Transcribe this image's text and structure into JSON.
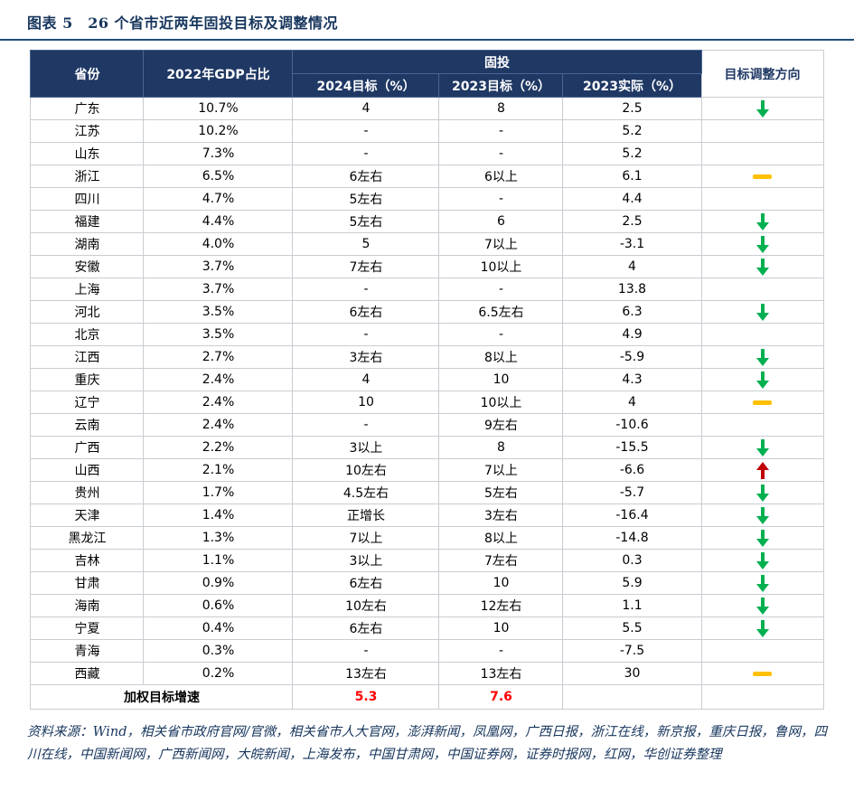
{
  "page_title": "图表 5　26 个省市近两年固投目标及调整情况",
  "chart_data": {
    "type": "table",
    "title": "26 个省市近两年固投目标及调整情况",
    "group_header": "固投",
    "columns": [
      "省份",
      "2022年GDP占比",
      "2024目标（%）",
      "2023目标（%）",
      "2023实际（%）",
      "目标调整方向"
    ],
    "rows": [
      {
        "province": "广东",
        "gdp_share": "10.7%",
        "target_2024": "4",
        "target_2023": "8",
        "actual_2023": "2.5",
        "direction": "down"
      },
      {
        "province": "江苏",
        "gdp_share": "10.2%",
        "target_2024": "-",
        "target_2023": "-",
        "actual_2023": "5.2",
        "direction": ""
      },
      {
        "province": "山东",
        "gdp_share": "7.3%",
        "target_2024": "-",
        "target_2023": "-",
        "actual_2023": "5.2",
        "direction": ""
      },
      {
        "province": "浙江",
        "gdp_share": "6.5%",
        "target_2024": "6左右",
        "target_2023": "6以上",
        "actual_2023": "6.1",
        "direction": "flat"
      },
      {
        "province": "四川",
        "gdp_share": "4.7%",
        "target_2024": "5左右",
        "target_2023": "-",
        "actual_2023": "4.4",
        "direction": ""
      },
      {
        "province": "福建",
        "gdp_share": "4.4%",
        "target_2024": "5左右",
        "target_2023": "6",
        "actual_2023": "2.5",
        "direction": "down"
      },
      {
        "province": "湖南",
        "gdp_share": "4.0%",
        "target_2024": "5",
        "target_2023": "7以上",
        "actual_2023": "-3.1",
        "direction": "down"
      },
      {
        "province": "安徽",
        "gdp_share": "3.7%",
        "target_2024": "7左右",
        "target_2023": "10以上",
        "actual_2023": "4",
        "direction": "down"
      },
      {
        "province": "上海",
        "gdp_share": "3.7%",
        "target_2024": "-",
        "target_2023": "-",
        "actual_2023": "13.8",
        "direction": ""
      },
      {
        "province": "河北",
        "gdp_share": "3.5%",
        "target_2024": "6左右",
        "target_2023": "6.5左右",
        "actual_2023": "6.3",
        "direction": "down"
      },
      {
        "province": "北京",
        "gdp_share": "3.5%",
        "target_2024": "-",
        "target_2023": "-",
        "actual_2023": "4.9",
        "direction": ""
      },
      {
        "province": "江西",
        "gdp_share": "2.7%",
        "target_2024": "3左右",
        "target_2023": "8以上",
        "actual_2023": "-5.9",
        "direction": "down"
      },
      {
        "province": "重庆",
        "gdp_share": "2.4%",
        "target_2024": "4",
        "target_2023": "10",
        "actual_2023": "4.3",
        "direction": "down"
      },
      {
        "province": "辽宁",
        "gdp_share": "2.4%",
        "target_2024": "10",
        "target_2023": "10以上",
        "actual_2023": "4",
        "direction": "flat"
      },
      {
        "province": "云南",
        "gdp_share": "2.4%",
        "target_2024": "-",
        "target_2023": "9左右",
        "actual_2023": "-10.6",
        "direction": ""
      },
      {
        "province": "广西",
        "gdp_share": "2.2%",
        "target_2024": "3以上",
        "target_2023": "8",
        "actual_2023": "-15.5",
        "direction": "down"
      },
      {
        "province": "山西",
        "gdp_share": "2.1%",
        "target_2024": "10左右",
        "target_2023": "7以上",
        "actual_2023": "-6.6",
        "direction": "up"
      },
      {
        "province": "贵州",
        "gdp_share": "1.7%",
        "target_2024": "4.5左右",
        "target_2023": "5左右",
        "actual_2023": "-5.7",
        "direction": "down"
      },
      {
        "province": "天津",
        "gdp_share": "1.4%",
        "target_2024": "正增长",
        "target_2023": "3左右",
        "actual_2023": "-16.4",
        "direction": "down"
      },
      {
        "province": "黑龙江",
        "gdp_share": "1.3%",
        "target_2024": "7以上",
        "target_2023": "8以上",
        "actual_2023": "-14.8",
        "direction": "down"
      },
      {
        "province": "吉林",
        "gdp_share": "1.1%",
        "target_2024": "3以上",
        "target_2023": "7左右",
        "actual_2023": "0.3",
        "direction": "down"
      },
      {
        "province": "甘肃",
        "gdp_share": "0.9%",
        "target_2024": "6左右",
        "target_2023": "10",
        "actual_2023": "5.9",
        "direction": "down"
      },
      {
        "province": "海南",
        "gdp_share": "0.6%",
        "target_2024": "10左右",
        "target_2023": "12左右",
        "actual_2023": "1.1",
        "direction": "down"
      },
      {
        "province": "宁夏",
        "gdp_share": "0.4%",
        "target_2024": "6左右",
        "target_2023": "10",
        "actual_2023": "5.5",
        "direction": "down"
      },
      {
        "province": "青海",
        "gdp_share": "0.3%",
        "target_2024": "-",
        "target_2023": "-",
        "actual_2023": "-7.5",
        "direction": ""
      },
      {
        "province": "西藏",
        "gdp_share": "0.2%",
        "target_2024": "13左右",
        "target_2023": "13左右",
        "actual_2023": "30",
        "direction": "flat"
      }
    ],
    "summary_row": {
      "label": "加权目标增速",
      "target_2024": "5.3",
      "target_2023": "7.6",
      "actual_2023": "",
      "direction": ""
    }
  },
  "source_note": "资料来源：Wind，相关省市政府官网/官微，相关省市人大官网，澎湃新闻，凤凰网，广西日报，浙江在线，新京报，重庆日报，鲁网，四川在线，中国新闻网，广西新闻网，大皖新闻，上海发布，中国甘肃网，中国证券网，证券时报网，红网，华创证券整理",
  "colors": {
    "header_bg": "#1f3864",
    "title_text": "#17365d",
    "rule_blue": "#1f4e79",
    "down_green": "#00b050",
    "flat_yellow": "#ffc000",
    "up_red": "#c00000",
    "summary_bg": "#dbe9f6",
    "summary_value_red": "#fe0000",
    "border_gray": "#c9ccd1"
  }
}
